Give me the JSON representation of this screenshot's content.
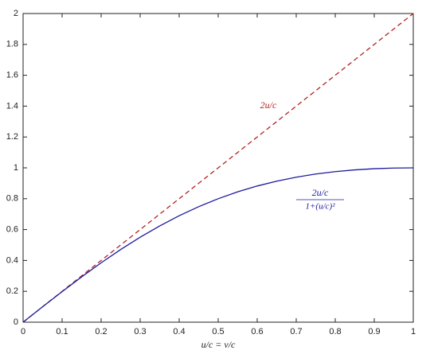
{
  "chart_data": {
    "type": "line",
    "xlabel": "u/c = v/c",
    "x": [
      0,
      0.05,
      0.1,
      0.15,
      0.2,
      0.25,
      0.3,
      0.35,
      0.4,
      0.45,
      0.5,
      0.55,
      0.6,
      0.65,
      0.7,
      0.75,
      0.8,
      0.85,
      0.9,
      0.95,
      1
    ],
    "series": [
      {
        "color": "#b22222",
        "dashed": true,
        "values": [
          0,
          0.1,
          0.2,
          0.3,
          0.4,
          0.5,
          0.6,
          0.7,
          0.8,
          0.9,
          1,
          1.1,
          1.2,
          1.3,
          1.4,
          1.5,
          1.6,
          1.7,
          1.8,
          1.9,
          2
        ]
      },
      {
        "color": "#1a1a9c",
        "dashed": false,
        "values": [
          0,
          0.0998,
          0.198,
          0.2934,
          0.3846,
          0.4706,
          0.5505,
          0.6236,
          0.6897,
          0.7484,
          0.8,
          0.8445,
          0.8824,
          0.9139,
          0.9396,
          0.96,
          0.9756,
          0.9869,
          0.9945,
          0.9987,
          1
        ]
      }
    ],
    "annotations": [
      {
        "text": "2u/c",
        "color": "#b22222"
      },
      {
        "numerator": "2u/c",
        "denominator": "1+(u/c)²",
        "color": "#1a1a9c"
      }
    ],
    "xlim": [
      0,
      1
    ],
    "ylim": [
      0,
      2
    ],
    "xticks": [
      0,
      0.1,
      0.2,
      0.3,
      0.4,
      0.5,
      0.6,
      0.7,
      0.8,
      0.9,
      1
    ],
    "yticks": [
      0,
      0.2,
      0.4,
      0.6,
      0.8,
      1,
      1.2,
      1.4,
      1.6,
      1.8,
      2
    ]
  }
}
